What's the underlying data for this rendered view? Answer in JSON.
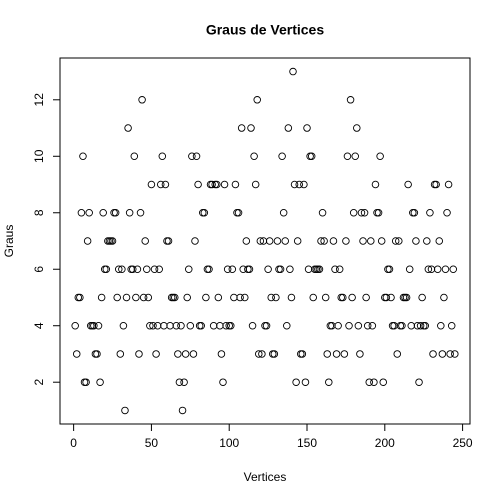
{
  "chart_data": {
    "type": "scatter",
    "title": "Graus de Vertices",
    "x_label": "Vertices",
    "y_label": "Graus",
    "x": [
      1,
      2,
      3,
      4,
      5,
      6,
      7,
      8,
      9,
      10,
      11,
      12,
      13,
      14,
      15,
      16,
      17,
      18,
      19,
      20,
      21,
      22,
      23,
      24,
      25,
      26,
      27,
      28,
      29,
      30,
      31,
      32,
      33,
      34,
      35,
      36,
      37,
      38,
      39,
      40,
      41,
      42,
      43,
      44,
      45,
      46,
      47,
      48,
      49,
      50,
      51,
      52,
      53,
      54,
      55,
      56,
      57,
      58,
      59,
      60,
      61,
      62,
      63,
      64,
      65,
      66,
      67,
      68,
      69,
      70,
      71,
      72,
      73,
      74,
      75,
      76,
      77,
      78,
      79,
      80,
      81,
      82,
      83,
      84,
      85,
      86,
      87,
      88,
      89,
      90,
      91,
      92,
      93,
      94,
      95,
      96,
      97,
      98,
      99,
      100,
      101,
      102,
      103,
      104,
      105,
      106,
      107,
      108,
      109,
      110,
      111,
      112,
      113,
      114,
      115,
      116,
      117,
      118,
      119,
      120,
      121,
      122,
      123,
      124,
      125,
      126,
      127,
      128,
      129,
      130,
      131,
      132,
      133,
      134,
      135,
      136,
      137,
      138,
      139,
      140,
      141,
      142,
      143,
      144,
      145,
      146,
      147,
      148,
      149,
      150,
      151,
      152,
      153,
      154,
      155,
      156,
      157,
      158,
      159,
      160,
      161,
      162,
      163,
      164,
      165,
      166,
      167,
      168,
      169,
      170,
      171,
      172,
      173,
      174,
      175,
      176,
      177,
      178,
      179,
      180,
      181,
      182,
      183,
      184,
      185,
      186,
      187,
      188,
      189,
      190,
      191,
      192,
      193,
      194,
      195,
      196,
      197,
      198,
      199,
      200,
      201,
      202,
      203,
      204,
      205,
      206,
      207,
      208,
      209,
      210,
      211,
      212,
      213,
      214,
      215,
      216,
      217,
      218,
      219,
      220,
      221,
      222,
      223,
      224,
      225,
      226,
      227,
      228,
      229,
      230,
      231,
      232,
      233,
      234,
      235,
      236,
      237,
      238,
      239,
      240,
      241,
      242,
      243,
      244,
      245
    ],
    "values": [
      4,
      3,
      5,
      5,
      8,
      10,
      2,
      2,
      7,
      8,
      4,
      4,
      4,
      3,
      3,
      4,
      2,
      5,
      8,
      6,
      6,
      7,
      7,
      7,
      7,
      8,
      8,
      5,
      6,
      3,
      6,
      4,
      1,
      5,
      11,
      8,
      6,
      6,
      10,
      5,
      6,
      3,
      8,
      12,
      5,
      7,
      6,
      5,
      4,
      9,
      4,
      6,
      3,
      4,
      6,
      9,
      10,
      4,
      9,
      7,
      7,
      4,
      5,
      5,
      5,
      4,
      3,
      2,
      4,
      1,
      2,
      3,
      5,
      6,
      4,
      10,
      3,
      7,
      10,
      9,
      4,
      4,
      8,
      8,
      5,
      6,
      6,
      9,
      9,
      4,
      9,
      9,
      5,
      4,
      3,
      2,
      9,
      4,
      6,
      4,
      4,
      6,
      5,
      9,
      8,
      8,
      5,
      11,
      6,
      5,
      7,
      6,
      6,
      11,
      4,
      10,
      9,
      12,
      3,
      7,
      3,
      7,
      4,
      4,
      6,
      7,
      5,
      3,
      3,
      5,
      7,
      6,
      6,
      10,
      8,
      7,
      4,
      11,
      6,
      5,
      13,
      9,
      2,
      7,
      9,
      3,
      3,
      9,
      2,
      11,
      6,
      10,
      10,
      5,
      6,
      6,
      6,
      6,
      7,
      8,
      7,
      5,
      3,
      2,
      4,
      4,
      7,
      6,
      3,
      4,
      6,
      5,
      5,
      3,
      7,
      10,
      4,
      12,
      5,
      8,
      10,
      11,
      4,
      3,
      8,
      7,
      8,
      5,
      4,
      2,
      7,
      4,
      2,
      9,
      8,
      8,
      10,
      7,
      2,
      5,
      5,
      6,
      6,
      5,
      4,
      4,
      7,
      3,
      7,
      4,
      4,
      5,
      5,
      5,
      9,
      6,
      4,
      8,
      8,
      7,
      4,
      2,
      4,
      5,
      4,
      4,
      7,
      6,
      8,
      6,
      3,
      9,
      9,
      6,
      7,
      4,
      3,
      5,
      6,
      8,
      9,
      3,
      4,
      6,
      3
    ],
    "color": "#000000",
    "xlim": [
      -8.76,
      254.76
    ],
    "ylim": [
      0.52,
      13.48
    ],
    "xticks": [
      0,
      50,
      100,
      150,
      200,
      250
    ],
    "yticks": [
      2,
      4,
      6,
      8,
      10,
      12
    ]
  }
}
